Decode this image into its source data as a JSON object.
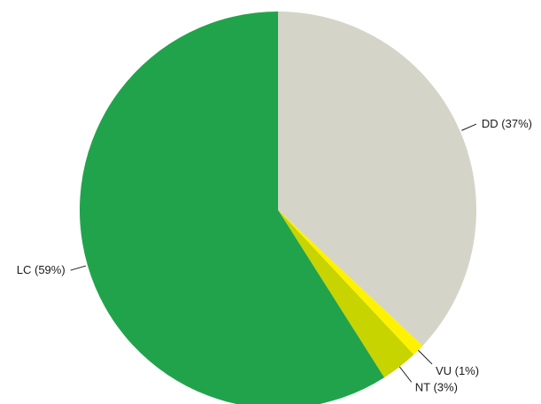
{
  "chart_data": {
    "type": "pie",
    "slices": [
      {
        "category": "DD",
        "label": "DD (37%)",
        "value": 37,
        "color": "#d4d4c8"
      },
      {
        "category": "VU",
        "label": "VU (1%)",
        "value": 1,
        "color": "#fff200"
      },
      {
        "category": "NT",
        "label": "NT (3%)",
        "value": 3,
        "color": "#c8d400"
      },
      {
        "category": "LC",
        "label": "LC (59%)",
        "value": 59,
        "color": "#21a34c"
      }
    ],
    "start_angle_deg": 0,
    "direction": "clockwise",
    "legend": "none",
    "title": ""
  }
}
